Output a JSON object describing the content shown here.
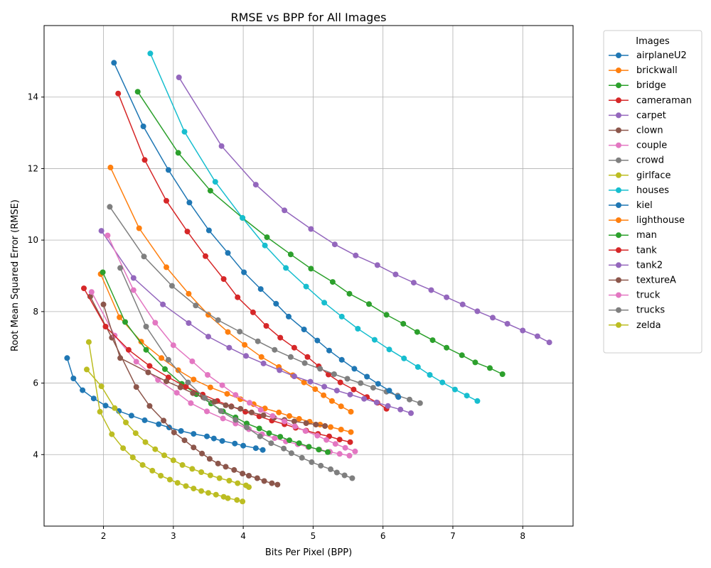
{
  "chart_data": {
    "type": "line",
    "title": "RMSE vs BPP for All Images",
    "xlabel": "Bits Per Pixel (BPP)",
    "ylabel": "Root Mean Squared Error (RMSE)",
    "xlim": [
      1.15,
      8.72
    ],
    "ylim": [
      2.0,
      16.0
    ],
    "xticks": [
      2,
      3,
      4,
      5,
      6,
      7,
      8
    ],
    "yticks": [
      4,
      6,
      8,
      10,
      12,
      14
    ],
    "grid": true,
    "legend_title": "Images",
    "legend_position": "outside-right",
    "series": [
      {
        "name": "airplaneU2",
        "color": "#1f77b4",
        "x": [
          1.48,
          1.57,
          1.7,
          1.86,
          2.03,
          2.22,
          2.4,
          2.59,
          2.79,
          2.94,
          3.11,
          3.29,
          3.48,
          3.58,
          3.7,
          3.88,
          4.0,
          4.18,
          4.28
        ],
        "y": [
          6.7,
          6.13,
          5.8,
          5.57,
          5.37,
          5.22,
          5.09,
          4.96,
          4.85,
          4.76,
          4.66,
          4.58,
          4.51,
          4.45,
          4.38,
          4.31,
          4.25,
          4.18,
          4.13
        ]
      },
      {
        "name": "brickwall",
        "color": "#ff7f0e",
        "x": [
          2.1,
          2.51,
          2.9,
          3.22,
          3.5,
          3.78,
          4.02,
          4.26,
          4.51,
          4.71,
          4.87,
          5.03,
          5.15,
          5.27,
          5.4,
          5.54
        ],
        "y": [
          12.03,
          10.33,
          9.24,
          8.5,
          7.91,
          7.43,
          7.07,
          6.73,
          6.45,
          6.22,
          6.02,
          5.83,
          5.66,
          5.5,
          5.35,
          5.2
        ]
      },
      {
        "name": "bridge",
        "color": "#2ca02c",
        "x": [
          2.49,
          3.07,
          3.53,
          3.99,
          4.34,
          4.68,
          4.97,
          5.28,
          5.52,
          5.8,
          6.05,
          6.29,
          6.49,
          6.71,
          6.91,
          7.13,
          7.32,
          7.53,
          7.71
        ],
        "y": [
          14.15,
          12.44,
          11.38,
          10.62,
          10.08,
          9.6,
          9.2,
          8.83,
          8.5,
          8.21,
          7.91,
          7.66,
          7.43,
          7.2,
          6.99,
          6.78,
          6.58,
          6.42,
          6.25
        ]
      },
      {
        "name": "cameraman",
        "color": "#d62728",
        "x": [
          2.21,
          2.59,
          2.9,
          3.2,
          3.46,
          3.72,
          3.92,
          4.14,
          4.33,
          4.53,
          4.73,
          4.92,
          5.08,
          5.22,
          5.39,
          5.58,
          5.77,
          5.92,
          6.05
        ],
        "y": [
          14.1,
          12.24,
          11.1,
          10.24,
          9.55,
          8.91,
          8.4,
          7.98,
          7.6,
          7.27,
          6.99,
          6.73,
          6.47,
          6.24,
          6.02,
          5.82,
          5.61,
          5.45,
          5.28
        ]
      },
      {
        "name": "carpet",
        "color": "#9467bd",
        "x": [
          3.08,
          3.69,
          4.18,
          4.59,
          4.97,
          5.31,
          5.61,
          5.92,
          6.18,
          6.44,
          6.69,
          6.91,
          7.14,
          7.35,
          7.57,
          7.78,
          8.0,
          8.21,
          8.38
        ],
        "y": [
          14.55,
          12.63,
          11.55,
          10.83,
          10.31,
          9.88,
          9.57,
          9.3,
          9.04,
          8.81,
          8.6,
          8.4,
          8.2,
          8.01,
          7.83,
          7.66,
          7.47,
          7.31,
          7.14
        ]
      },
      {
        "name": "clown",
        "color": "#8c564b",
        "x": [
          1.81,
          2.12,
          2.47,
          2.66,
          2.86,
          3.01,
          3.16,
          3.29,
          3.41,
          3.52,
          3.64,
          3.75,
          3.87,
          3.99,
          4.08,
          4.2,
          4.3,
          4.41,
          4.49
        ],
        "y": [
          8.42,
          7.27,
          5.89,
          5.36,
          4.95,
          4.62,
          4.4,
          4.2,
          4.03,
          3.88,
          3.75,
          3.66,
          3.57,
          3.47,
          3.41,
          3.34,
          3.26,
          3.2,
          3.16
        ]
      },
      {
        "name": "couple",
        "color": "#e377c2",
        "x": [
          1.83,
          2.16,
          2.47,
          2.78,
          3.05,
          3.25,
          3.48,
          3.71,
          3.89,
          4.08,
          4.27,
          4.45,
          4.61,
          4.78,
          4.93,
          5.09,
          5.24,
          5.38,
          5.52
        ],
        "y": [
          8.55,
          7.33,
          6.6,
          6.09,
          5.73,
          5.44,
          5.21,
          5.01,
          4.87,
          4.71,
          4.57,
          4.46,
          4.37,
          4.29,
          4.21,
          4.14,
          4.08,
          4.02,
          3.97
        ]
      },
      {
        "name": "crowd",
        "color": "#7f7f7f",
        "x": [
          2.09,
          2.58,
          2.98,
          3.32,
          3.64,
          3.95,
          4.21,
          4.45,
          4.68,
          4.88,
          5.1,
          5.3,
          5.49,
          5.68,
          5.86,
          6.05,
          6.21,
          6.38,
          6.53
        ],
        "y": [
          10.93,
          9.54,
          8.72,
          8.17,
          7.76,
          7.44,
          7.17,
          6.93,
          6.73,
          6.56,
          6.4,
          6.25,
          6.12,
          6.0,
          5.87,
          5.76,
          5.65,
          5.54,
          5.44
        ]
      },
      {
        "name": "girlface",
        "color": "#bcbd22",
        "x": [
          1.76,
          1.97,
          2.16,
          2.32,
          2.46,
          2.6,
          2.74,
          2.87,
          3.0,
          3.13,
          3.27,
          3.4,
          3.53,
          3.66,
          3.8,
          3.92,
          4.04,
          4.08
        ],
        "y": [
          6.38,
          5.91,
          5.3,
          4.9,
          4.6,
          4.35,
          4.15,
          3.98,
          3.84,
          3.71,
          3.6,
          3.51,
          3.42,
          3.34,
          3.27,
          3.2,
          3.14,
          3.09
        ]
      },
      {
        "name": "houses",
        "color": "#17becf",
        "x": [
          2.67,
          3.16,
          3.6,
          3.99,
          4.31,
          4.61,
          4.9,
          5.16,
          5.41,
          5.64,
          5.88,
          6.09,
          6.3,
          6.5,
          6.67,
          6.85,
          7.03,
          7.2,
          7.35
        ],
        "y": [
          15.22,
          13.03,
          11.63,
          10.62,
          9.85,
          9.22,
          8.7,
          8.25,
          7.86,
          7.52,
          7.21,
          6.94,
          6.69,
          6.45,
          6.23,
          6.02,
          5.82,
          5.65,
          5.5
        ]
      },
      {
        "name": "kiel",
        "color": "#1f77b4",
        "x": [
          2.15,
          2.57,
          2.93,
          3.23,
          3.51,
          3.78,
          4.01,
          4.25,
          4.47,
          4.65,
          4.87,
          5.06,
          5.23,
          5.41,
          5.59,
          5.77,
          5.93,
          6.09,
          6.22
        ],
        "y": [
          14.96,
          13.18,
          11.96,
          11.05,
          10.27,
          9.64,
          9.1,
          8.63,
          8.22,
          7.86,
          7.5,
          7.19,
          6.91,
          6.65,
          6.4,
          6.18,
          5.98,
          5.79,
          5.61
        ]
      },
      {
        "name": "lighthouse",
        "color": "#ff7f0e",
        "x": [
          1.96,
          2.23,
          2.54,
          2.83,
          3.07,
          3.29,
          3.53,
          3.77,
          3.96,
          4.15,
          4.31,
          4.51,
          4.66,
          4.8,
          4.95,
          5.1,
          5.25,
          5.4,
          5.54
        ],
        "y": [
          9.05,
          7.84,
          7.16,
          6.7,
          6.36,
          6.1,
          5.88,
          5.7,
          5.55,
          5.41,
          5.29,
          5.18,
          5.08,
          5.0,
          4.92,
          4.84,
          4.77,
          4.7,
          4.63
        ]
      },
      {
        "name": "man",
        "color": "#2ca02c",
        "x": [
          1.99,
          2.31,
          2.61,
          2.88,
          3.12,
          3.33,
          3.54,
          3.71,
          3.89,
          4.05,
          4.23,
          4.37,
          4.53,
          4.66,
          4.8,
          4.94,
          5.08,
          5.21
        ],
        "y": [
          9.1,
          7.71,
          6.93,
          6.39,
          5.98,
          5.69,
          5.43,
          5.21,
          5.04,
          4.87,
          4.73,
          4.6,
          4.5,
          4.4,
          4.32,
          4.22,
          4.14,
          4.07
        ]
      },
      {
        "name": "tank",
        "color": "#d62728",
        "x": [
          1.72,
          2.03,
          2.36,
          2.66,
          2.93,
          3.18,
          3.42,
          3.63,
          3.83,
          4.03,
          4.23,
          4.41,
          4.59,
          4.75,
          4.9,
          5.07,
          5.23,
          5.38,
          5.53
        ],
        "y": [
          8.65,
          7.58,
          6.93,
          6.48,
          6.16,
          5.9,
          5.68,
          5.5,
          5.35,
          5.2,
          5.07,
          4.95,
          4.85,
          4.75,
          4.67,
          4.58,
          4.51,
          4.42,
          4.35
        ]
      },
      {
        "name": "tank2",
        "color": "#9467bd",
        "x": [
          1.97,
          2.43,
          2.85,
          3.22,
          3.5,
          3.8,
          4.04,
          4.29,
          4.52,
          4.73,
          4.96,
          5.16,
          5.34,
          5.53,
          5.73,
          5.91,
          6.07,
          6.25,
          6.4
        ],
        "y": [
          10.26,
          8.94,
          8.2,
          7.68,
          7.3,
          6.99,
          6.76,
          6.55,
          6.36,
          6.19,
          6.04,
          5.9,
          5.79,
          5.68,
          5.56,
          5.46,
          5.36,
          5.26,
          5.16
        ]
      },
      {
        "name": "textureA",
        "color": "#8c564b",
        "x": [
          2.0,
          2.24,
          2.64,
          2.9,
          3.1,
          3.28,
          3.43,
          3.59,
          3.75,
          3.83,
          3.96,
          4.12,
          4.29,
          4.44,
          4.59,
          4.73,
          4.9,
          5.04,
          5.17
        ],
        "y": [
          8.2,
          6.7,
          6.3,
          6.05,
          5.88,
          5.72,
          5.6,
          5.48,
          5.38,
          5.34,
          5.28,
          5.18,
          5.1,
          5.03,
          4.97,
          4.93,
          4.88,
          4.84,
          4.8
        ]
      },
      {
        "name": "truck",
        "color": "#e377c2",
        "x": [
          2.06,
          2.43,
          2.74,
          3.0,
          3.27,
          3.49,
          3.7,
          3.89,
          4.09,
          4.25,
          4.42,
          4.59,
          4.74,
          4.89,
          5.06,
          5.19,
          5.32,
          5.46,
          5.6
        ],
        "y": [
          10.13,
          8.6,
          7.69,
          7.06,
          6.61,
          6.23,
          5.94,
          5.67,
          5.45,
          5.25,
          5.08,
          4.93,
          4.79,
          4.66,
          4.53,
          4.41,
          4.3,
          4.19,
          4.09
        ]
      },
      {
        "name": "trucks",
        "color": "#7f7f7f",
        "x": [
          2.24,
          2.61,
          2.93,
          3.21,
          3.45,
          3.68,
          3.89,
          4.05,
          4.24,
          4.4,
          4.58,
          4.69,
          4.84,
          4.98,
          5.11,
          5.25,
          5.34,
          5.45,
          5.56
        ],
        "y": [
          9.22,
          7.58,
          6.65,
          6.02,
          5.58,
          5.22,
          4.97,
          4.76,
          4.51,
          4.32,
          4.17,
          4.04,
          3.91,
          3.79,
          3.69,
          3.59,
          3.5,
          3.42,
          3.34
        ]
      },
      {
        "name": "zelda",
        "color": "#bcbd22",
        "x": [
          1.79,
          1.95,
          2.12,
          2.28,
          2.42,
          2.56,
          2.7,
          2.82,
          2.95,
          3.06,
          3.18,
          3.29,
          3.4,
          3.5,
          3.61,
          3.72,
          3.78,
          3.91,
          3.99
        ],
        "y": [
          7.15,
          5.2,
          4.57,
          4.18,
          3.92,
          3.71,
          3.55,
          3.41,
          3.3,
          3.21,
          3.12,
          3.05,
          2.98,
          2.93,
          2.88,
          2.82,
          2.78,
          2.73,
          2.69
        ]
      }
    ]
  }
}
